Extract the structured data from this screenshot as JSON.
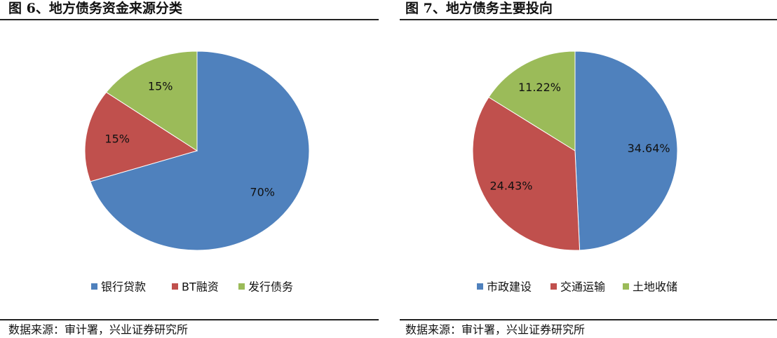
{
  "chart_data": [
    {
      "type": "pie",
      "title": "图 6、地方债务资金来源分类",
      "categories": [
        "银行贷款",
        "BT融资",
        "发行债务"
      ],
      "values": [
        70,
        15,
        15
      ],
      "value_labels": [
        "70%",
        "15%",
        "15%"
      ],
      "colors": [
        "#4f81bd",
        "#c0504d",
        "#9bbb59"
      ],
      "source": "数据来源：审计署，兴业证券研究所"
    },
    {
      "type": "pie",
      "title": "图 7、地方债务主要投向",
      "categories": [
        "市政建设",
        "交通运输",
        "土地收储"
      ],
      "values": [
        34.64,
        24.43,
        11.22
      ],
      "value_labels": [
        "34.64%",
        "24.43%",
        "11.22%"
      ],
      "colors": [
        "#4f81bd",
        "#c0504d",
        "#9bbb59"
      ],
      "source": "数据来源：审计署，兴业证券研究所"
    }
  ]
}
